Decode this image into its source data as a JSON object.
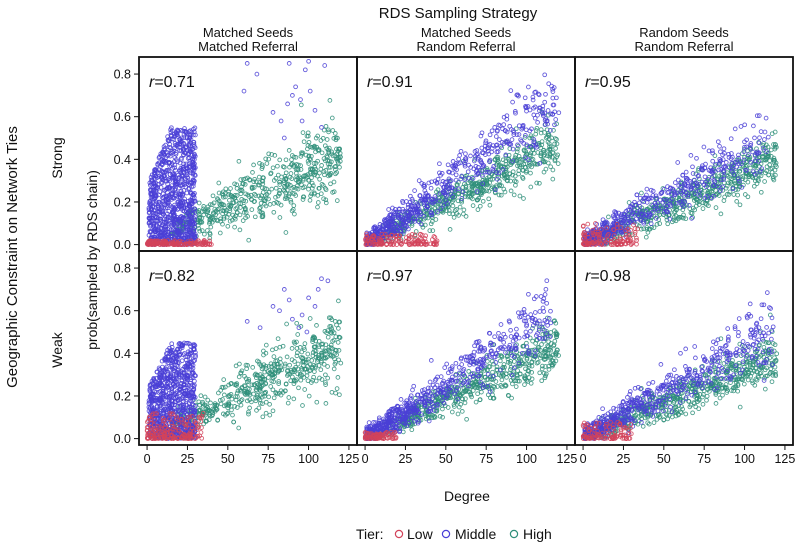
{
  "chart_data": {
    "type": "scatter",
    "title": "RDS Sampling Strategy",
    "row_title": "Geographic Constraint on Network Ties",
    "xlabel": "Degree",
    "ylabel": "prob(sampled by RDS chain)",
    "columns": [
      "Matched Seeds\nMatched Referral",
      "Matched Seeds\nRandom Referral",
      "Random Seeds\nRandom Referral"
    ],
    "rows": [
      "Strong",
      "Weak"
    ],
    "xlim": [
      -5,
      130
    ],
    "ylim": [
      -0.03,
      0.88
    ],
    "xticks": [
      0,
      25,
      50,
      75,
      100,
      125
    ],
    "yticks": [
      0.0,
      0.2,
      0.4,
      0.6,
      0.8
    ],
    "legend": {
      "title": "Tier:",
      "placement": "bottom",
      "entries": [
        {
          "name": "Low",
          "color": "#d2435a"
        },
        {
          "name": "Middle",
          "color": "#4a3fd6"
        },
        {
          "name": "High",
          "color": "#2f8f7a"
        }
      ]
    },
    "panels": [
      {
        "row": "Strong",
        "column": 1,
        "r_prefix": "r",
        "r_value": "=0.71",
        "series": [
          {
            "name": "Low",
            "degree_range": [
              0,
              40
            ],
            "prob_range": [
              0,
              0.02
            ],
            "n": 160
          },
          {
            "name": "Middle",
            "degree_range": [
              1,
              30
            ],
            "prob_range": [
              0,
              0.55
            ],
            "n": 900,
            "outliers": [
              [
                60,
                0.72
              ],
              [
                62,
                0.85
              ],
              [
                68,
                0.8
              ],
              [
                78,
                0.62
              ],
              [
                83,
                0.58
              ],
              [
                85,
                0.5
              ],
              [
                88,
                0.85
              ],
              [
                90,
                0.7
              ],
              [
                92,
                0.74
              ],
              [
                95,
                0.68
              ],
              [
                98,
                0.82
              ],
              [
                100,
                0.86
              ],
              [
                104,
                0.63
              ],
              [
                110,
                0.84
              ],
              [
                96,
                0.58
              ],
              [
                87,
                0.66
              ],
              [
                101,
                0.72
              ],
              [
                108,
                0.55
              ]
            ]
          },
          {
            "name": "High",
            "degree_range": [
              15,
              120
            ],
            "prob_range": [
              0,
              0.55
            ],
            "n": 550
          }
        ]
      },
      {
        "row": "Strong",
        "column": 2,
        "r_prefix": "r",
        "r_value": "=0.91",
        "series": [
          {
            "name": "Low",
            "degree_range": [
              0,
              45
            ],
            "prob_range": [
              0,
              0.05
            ],
            "n": 140
          },
          {
            "name": "Middle",
            "degree_range": [
              1,
              120
            ],
            "prob_range": [
              0,
              0.66
            ],
            "n": 650
          },
          {
            "name": "High",
            "degree_range": [
              10,
              120
            ],
            "prob_range": [
              0,
              0.6
            ],
            "n": 550
          }
        ]
      },
      {
        "row": "Strong",
        "column": 3,
        "r_prefix": "r",
        "r_value": "=0.95",
        "series": [
          {
            "name": "Low",
            "degree_range": [
              0,
              35
            ],
            "prob_range": [
              0,
              0.1
            ],
            "n": 130
          },
          {
            "name": "Middle",
            "degree_range": [
              1,
              115
            ],
            "prob_range": [
              0,
              0.5
            ],
            "n": 600
          },
          {
            "name": "High",
            "degree_range": [
              10,
              120
            ],
            "prob_range": [
              0,
              0.52
            ],
            "n": 550
          }
        ]
      },
      {
        "row": "Weak",
        "column": 1,
        "r_prefix": "r",
        "r_value": "=0.82",
        "series": [
          {
            "name": "Low",
            "degree_range": [
              0,
              35
            ],
            "prob_range": [
              0,
              0.12
            ],
            "n": 180
          },
          {
            "name": "Middle",
            "degree_range": [
              1,
              30
            ],
            "prob_range": [
              0,
              0.45
            ],
            "n": 850,
            "outliers": [
              [
                62,
                0.55
              ],
              [
                70,
                0.52
              ],
              [
                78,
                0.62
              ],
              [
                82,
                0.6
              ],
              [
                85,
                0.7
              ],
              [
                88,
                0.65
              ],
              [
                90,
                0.56
              ],
              [
                96,
                0.58
              ],
              [
                100,
                0.66
              ],
              [
                104,
                0.62
              ],
              [
                108,
                0.75
              ],
              [
                112,
                0.74
              ],
              [
                106,
                0.7
              ],
              [
                94,
                0.52
              ],
              [
                99,
                0.5
              ]
            ]
          },
          {
            "name": "High",
            "degree_range": [
              15,
              120
            ],
            "prob_range": [
              0,
              0.5
            ],
            "n": 550
          }
        ]
      },
      {
        "row": "Weak",
        "column": 2,
        "r_prefix": "r",
        "r_value": "=0.97",
        "series": [
          {
            "name": "Low",
            "degree_range": [
              0,
              20
            ],
            "prob_range": [
              0,
              0.03
            ],
            "n": 80
          },
          {
            "name": "Middle",
            "degree_range": [
              1,
              115
            ],
            "prob_range": [
              0,
              0.58
            ],
            "n": 700
          },
          {
            "name": "High",
            "degree_range": [
              10,
              120
            ],
            "prob_range": [
              0,
              0.55
            ],
            "n": 550
          }
        ]
      },
      {
        "row": "Weak",
        "column": 3,
        "r_prefix": "r",
        "r_value": "=0.98",
        "series": [
          {
            "name": "Low",
            "degree_range": [
              0,
              30
            ],
            "prob_range": [
              0,
              0.08
            ],
            "n": 100
          },
          {
            "name": "Middle",
            "degree_range": [
              1,
              118
            ],
            "prob_range": [
              0,
              0.52
            ],
            "n": 650
          },
          {
            "name": "High",
            "degree_range": [
              10,
              120
            ],
            "prob_range": [
              0,
              0.5
            ],
            "n": 550
          }
        ]
      }
    ]
  }
}
